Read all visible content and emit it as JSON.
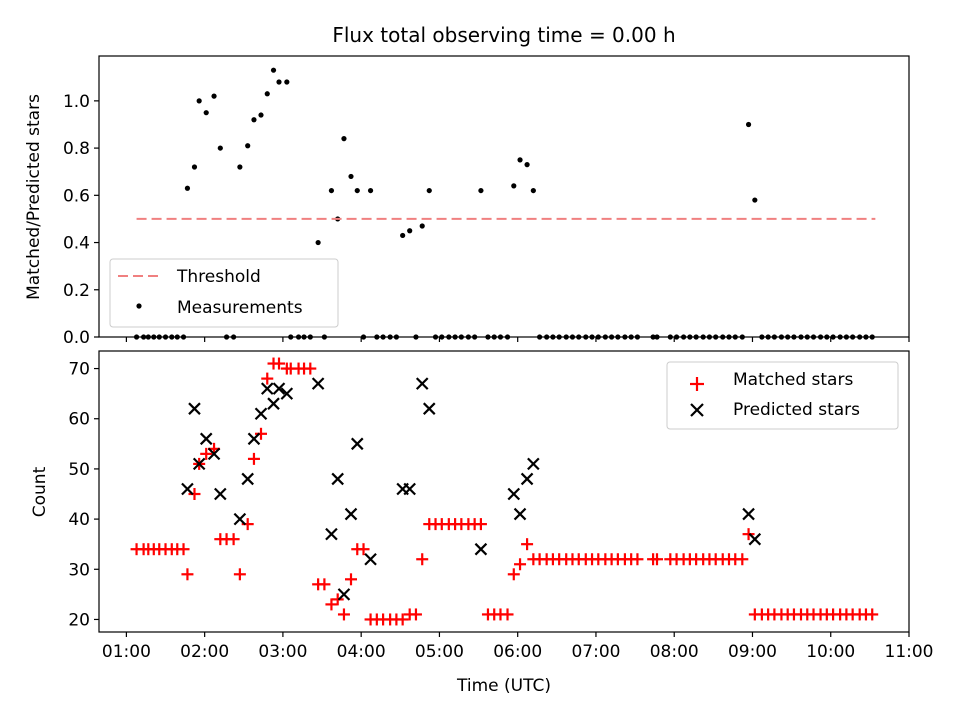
{
  "title": "Flux total observing time = 0.00 h",
  "top_panel": {
    "ylabel": "Matched/Predicted stars",
    "yticks": [
      "0.0",
      "0.2",
      "0.4",
      "0.6",
      "0.8",
      "1.0"
    ],
    "legend": {
      "threshold": "Threshold",
      "measurements": "Measurements"
    }
  },
  "bottom_panel": {
    "ylabel": "Count",
    "yticks": [
      "20",
      "30",
      "40",
      "50",
      "60",
      "70"
    ],
    "legend": {
      "matched": "Matched stars",
      "predicted": "Predicted stars"
    }
  },
  "xlabel": "Time (UTC)",
  "xticks": [
    "01:00",
    "02:00",
    "03:00",
    "04:00",
    "05:00",
    "06:00",
    "07:00",
    "08:00",
    "09:00",
    "10:00",
    "11:00"
  ],
  "colors": {
    "threshold": "#f08080",
    "measurements": "#000000",
    "matched": "#ff0000",
    "predicted": "#000000"
  },
  "chart_data": [
    {
      "type": "scatter",
      "panel": "top",
      "title": "Flux total observing time = 0.00 h",
      "ylabel": "Matched/Predicted stars",
      "xlim": [
        0.65,
        11.0
      ],
      "ylim": [
        0.0,
        1.19
      ],
      "legend_position": "lower-left",
      "threshold": {
        "value": 0.5,
        "x_range": [
          1.13,
          10.57
        ]
      },
      "series": [
        {
          "name": "Measurements",
          "x": [
            1.13,
            1.22,
            1.28,
            1.35,
            1.42,
            1.5,
            1.58,
            1.65,
            1.73,
            1.78,
            1.87,
            1.93,
            2.02,
            2.12,
            2.2,
            2.28,
            2.37,
            2.45,
            2.55,
            2.63,
            2.72,
            2.8,
            2.88,
            2.95,
            3.05,
            3.1,
            3.2,
            3.27,
            3.35,
            3.45,
            3.53,
            3.62,
            3.7,
            3.78,
            3.87,
            3.95,
            4.03,
            4.12,
            4.2,
            4.28,
            4.37,
            4.45,
            4.53,
            4.62,
            4.7,
            4.78,
            4.87,
            4.95,
            5.03,
            5.12,
            5.2,
            5.28,
            5.37,
            5.45,
            5.53,
            5.62,
            5.7,
            5.78,
            5.87,
            5.95,
            6.03,
            6.12,
            6.2,
            6.28,
            6.37,
            6.45,
            6.53,
            6.62,
            6.7,
            6.78,
            6.87,
            6.95,
            7.03,
            7.12,
            7.2,
            7.28,
            7.37,
            7.45,
            7.53,
            7.73,
            7.78,
            7.95,
            8.03,
            8.12,
            8.2,
            8.28,
            8.37,
            8.45,
            8.53,
            8.62,
            8.7,
            8.78,
            8.87,
            8.95,
            9.03,
            9.12,
            9.2,
            9.28,
            9.37,
            9.45,
            9.53,
            9.62,
            9.7,
            9.78,
            9.87,
            9.95,
            10.03,
            10.12,
            10.2,
            10.28,
            10.37,
            10.45,
            10.53
          ],
          "y": [
            0,
            0,
            0,
            0,
            0,
            0,
            0,
            0,
            0,
            0.63,
            0.72,
            1.0,
            0.95,
            1.02,
            0.8,
            0,
            0,
            0.72,
            0.81,
            0.92,
            0.94,
            1.03,
            1.13,
            1.08,
            1.08,
            0,
            0,
            0,
            0,
            0.4,
            0,
            0.62,
            0.5,
            0.84,
            0.68,
            0.62,
            0,
            0.62,
            0,
            0,
            0,
            0,
            0.43,
            0.45,
            0,
            0.47,
            0.62,
            0,
            0,
            0,
            0,
            0,
            0,
            0,
            0.62,
            0,
            0,
            0,
            0,
            0.64,
            0.75,
            0.73,
            0.62,
            0,
            0,
            0,
            0,
            0,
            0,
            0,
            0,
            0,
            0,
            0,
            0,
            0,
            0,
            0,
            0,
            0,
            0,
            0,
            0,
            0,
            0,
            0,
            0,
            0,
            0,
            0,
            0,
            0,
            0,
            0.9,
            0.58,
            0,
            0,
            0,
            0,
            0,
            0,
            0,
            0,
            0,
            0,
            0,
            0,
            0,
            0,
            0,
            0,
            0,
            0
          ]
        }
      ]
    },
    {
      "type": "scatter",
      "panel": "bottom",
      "xlabel": "Time (UTC)",
      "ylabel": "Count",
      "xlim": [
        0.65,
        11.0
      ],
      "ylim": [
        17.5,
        73.5
      ],
      "legend_position": "top-right",
      "series": [
        {
          "name": "Matched stars",
          "x": [
            1.13,
            1.22,
            1.28,
            1.35,
            1.42,
            1.5,
            1.58,
            1.65,
            1.73,
            1.78,
            1.87,
            1.93,
            2.02,
            2.12,
            2.2,
            2.28,
            2.37,
            2.45,
            2.55,
            2.63,
            2.72,
            2.8,
            2.88,
            2.95,
            3.05,
            3.1,
            3.2,
            3.27,
            3.35,
            3.45,
            3.53,
            3.62,
            3.7,
            3.78,
            3.87,
            3.95,
            4.03,
            4.12,
            4.2,
            4.28,
            4.37,
            4.45,
            4.53,
            4.62,
            4.7,
            4.78,
            4.87,
            4.95,
            5.03,
            5.12,
            5.2,
            5.28,
            5.37,
            5.45,
            5.53,
            5.62,
            5.7,
            5.78,
            5.87,
            5.95,
            6.03,
            6.12,
            6.2,
            6.28,
            6.37,
            6.45,
            6.53,
            6.62,
            6.7,
            6.78,
            6.87,
            6.95,
            7.03,
            7.12,
            7.2,
            7.28,
            7.37,
            7.45,
            7.53,
            7.73,
            7.78,
            7.95,
            8.03,
            8.12,
            8.2,
            8.28,
            8.37,
            8.45,
            8.53,
            8.62,
            8.7,
            8.78,
            8.87,
            8.95,
            9.03,
            9.12,
            9.2,
            9.28,
            9.37,
            9.45,
            9.53,
            9.62,
            9.7,
            9.78,
            9.87,
            9.95,
            10.03,
            10.12,
            10.2,
            10.28,
            10.37,
            10.45,
            10.53
          ],
          "y": [
            34,
            34,
            34,
            34,
            34,
            34,
            34,
            34,
            34,
            29,
            45,
            51,
            53,
            54,
            36,
            36,
            36,
            29,
            39,
            52,
            57,
            68,
            71,
            71,
            70,
            70,
            70,
            70,
            70,
            27,
            27,
            23,
            24,
            21,
            28,
            34,
            34,
            20,
            20,
            20,
            20,
            20,
            20,
            21,
            21,
            32,
            39,
            39,
            39,
            39,
            39,
            39,
            39,
            39,
            39,
            21,
            21,
            21,
            21,
            29,
            31,
            35,
            32,
            32,
            32,
            32,
            32,
            32,
            32,
            32,
            32,
            32,
            32,
            32,
            32,
            32,
            32,
            32,
            32,
            32,
            32,
            32,
            32,
            32,
            32,
            32,
            32,
            32,
            32,
            32,
            32,
            32,
            32,
            37,
            21,
            21,
            21,
            21,
            21,
            21,
            21,
            21,
            21,
            21,
            21,
            21,
            21,
            21,
            21,
            21,
            21,
            21,
            21
          ]
        },
        {
          "name": "Predicted stars",
          "x": [
            1.78,
            1.87,
            1.93,
            2.02,
            2.12,
            2.2,
            2.45,
            2.55,
            2.63,
            2.72,
            2.8,
            2.88,
            2.95,
            3.05,
            3.45,
            3.62,
            3.7,
            3.78,
            3.87,
            3.95,
            4.12,
            4.53,
            4.62,
            4.78,
            4.87,
            5.53,
            5.95,
            6.03,
            6.12,
            6.2,
            8.95,
            9.03
          ],
          "y": [
            46,
            62,
            51,
            56,
            53,
            45,
            40,
            48,
            56,
            61,
            66,
            63,
            66,
            65,
            67,
            37,
            48,
            25,
            41,
            55,
            32,
            46,
            46,
            67,
            62,
            34,
            45,
            41,
            48,
            51,
            41,
            36
          ]
        }
      ]
    }
  ]
}
